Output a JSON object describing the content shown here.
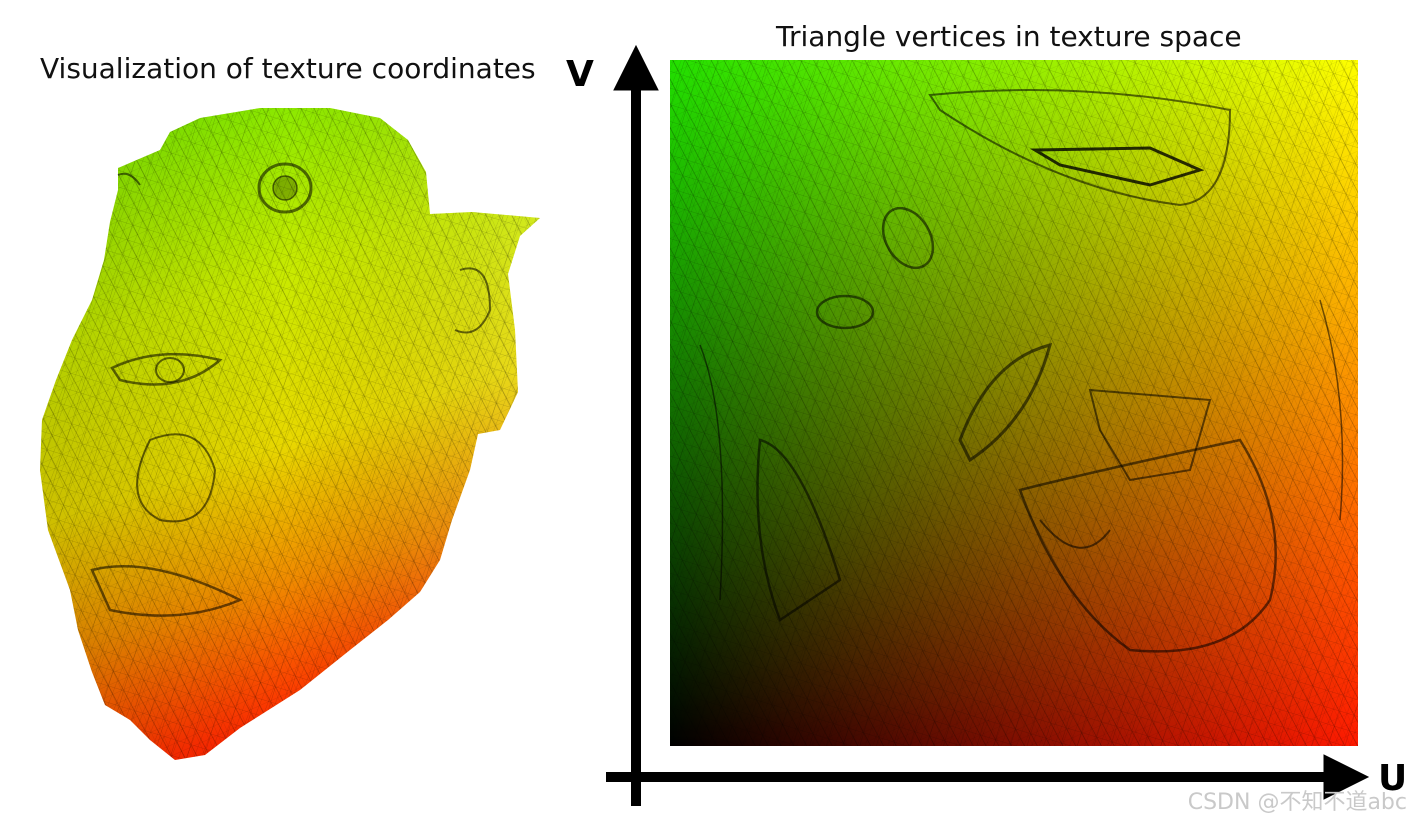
{
  "left_panel": {
    "title": "Visualization of texture coordinates"
  },
  "right_panel": {
    "title": "Triangle vertices in texture space",
    "axis_v_label": "V",
    "axis_u_label": "U"
  },
  "watermark": "CSDN @不知不道abc",
  "colors": {
    "top_left": "#22e000",
    "top_right": "#ffff00",
    "bottom_left": "#000000",
    "bottom_right": "#ff1a00",
    "mesh_line": "#000000",
    "axis": "#000000"
  }
}
